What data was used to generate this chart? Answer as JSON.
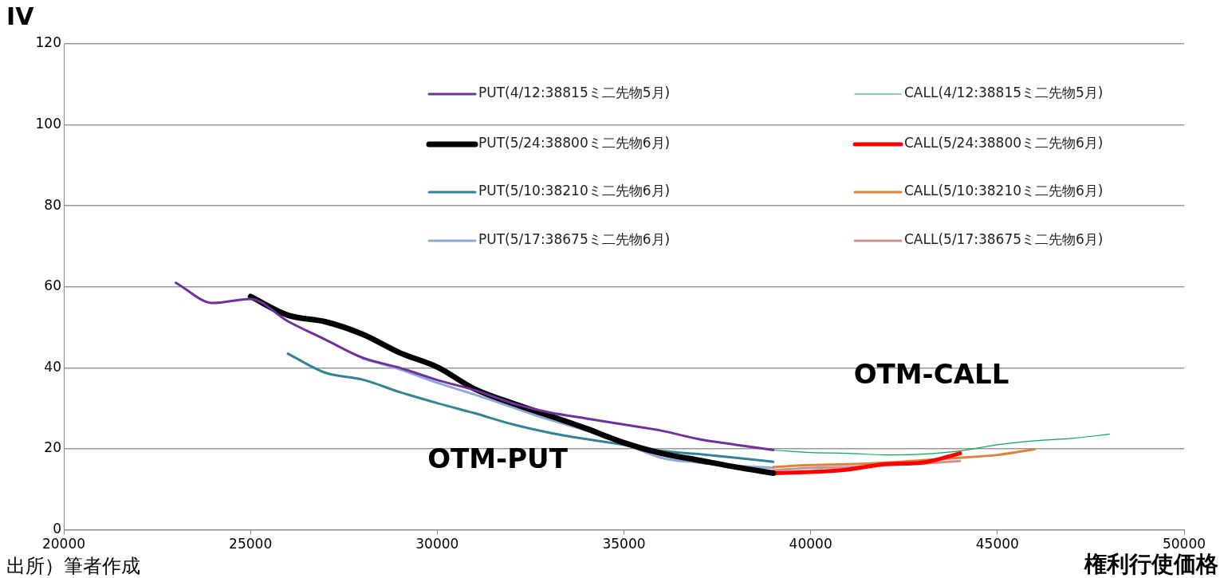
{
  "chart_data": {
    "type": "line",
    "xlabel": "権利行使価格",
    "ylabel": "IV",
    "xlim": [
      20000,
      50000
    ],
    "xticks": [
      20000,
      25000,
      30000,
      35000,
      40000,
      45000,
      50000
    ],
    "ylim": [
      0,
      120
    ],
    "yticks": [
      0,
      20,
      40,
      60,
      80,
      100,
      120
    ],
    "grid": "y",
    "legend": "top",
    "marker": "none",
    "line_style": "solid",
    "series": [
      {
        "name": "PUT(4/12:38815ミ二先物5月)",
        "color": "#7030a0",
        "x": [
          23000,
          24000,
          25000,
          26000,
          27000,
          28000,
          29000,
          30000,
          31000,
          32000,
          33000,
          34000,
          35000,
          36000,
          37000,
          38000,
          39000
        ],
        "values": [
          61,
          56,
          57,
          51.5,
          47,
          42.5,
          40,
          37,
          34.5,
          31.3,
          29,
          27.5,
          26,
          24.5,
          22.4,
          21,
          19.7
        ]
      },
      {
        "name": "CALL(4/12:38815ミ二先物5月)",
        "color": "#00b050",
        "x": [
          39000,
          40000,
          41000,
          42000,
          43000,
          44000,
          45000,
          46000,
          47000,
          48000
        ],
        "values": [
          19.7,
          19.1,
          18.9,
          18.5,
          18.7,
          19.5,
          21,
          22,
          22.6,
          23.6
        ]
      },
      {
        "name": "PUT(5/24:38800ミ二先物6月)",
        "color": "#000000",
        "x": [
          25000,
          26000,
          27000,
          28000,
          29000,
          30000,
          31000,
          32000,
          33000,
          34000,
          35000,
          36000,
          37000,
          38000,
          39000
        ],
        "values": [
          57.6,
          53,
          51.4,
          48.3,
          43.7,
          40.2,
          34.8,
          31.3,
          28.2,
          25,
          21.5,
          18.9,
          17.2,
          15.5,
          14
        ]
      },
      {
        "name": "CALL(5/24:38800ミ二先物6月)",
        "color": "#ff0000",
        "x": [
          39000,
          40000,
          41000,
          42000,
          43000,
          44000
        ],
        "values": [
          14,
          14.3,
          14.9,
          16.2,
          16.6,
          18.9
        ]
      },
      {
        "name": "PUT(5/10:38210ミ二先物6月)",
        "color": "#31849b",
        "x": [
          26000,
          27000,
          28000,
          29000,
          30000,
          31000,
          32000,
          33000,
          34000,
          35000,
          36000,
          37000,
          38000,
          39000
        ],
        "values": [
          43.5,
          38.8,
          37.1,
          34,
          31.3,
          28.8,
          26.1,
          24,
          22.4,
          21,
          19.5,
          18.7,
          17.8,
          16.8
        ]
      },
      {
        "name": "CALL(5/10:38210ミ二先物6月)",
        "color": "#e0823c",
        "x": [
          39000,
          40000,
          41000,
          42000,
          43000,
          44000,
          45000,
          46000
        ],
        "values": [
          15.5,
          16,
          16.2,
          16.6,
          17.2,
          17.8,
          18.5,
          19.9
        ]
      },
      {
        "name": "PUT(5/17:38675ミ二先物6月)",
        "color": "#8ea9d8",
        "x": [
          28000,
          29000,
          30000,
          31000,
          32000,
          33000,
          34000,
          35000,
          36000,
          37000,
          38000,
          39000
        ],
        "values": [
          42.3,
          39.6,
          36.3,
          33.4,
          30.3,
          27.2,
          24.5,
          21.3,
          17.8,
          16.6,
          15.8,
          15.3
        ]
      },
      {
        "name": "CALL(5/17:38675ミ二先物6月)",
        "color": "#d09090",
        "x": [
          39000,
          40000,
          41000,
          42000,
          43000,
          44000
        ],
        "values": [
          14.7,
          15.3,
          15.5,
          16,
          16.4,
          17
        ]
      }
    ],
    "annotations": [
      "OTM-PUT",
      "OTM-CALL",
      "出所）筆者作成"
    ]
  }
}
